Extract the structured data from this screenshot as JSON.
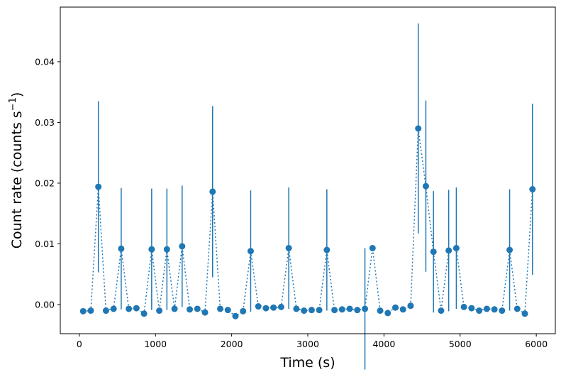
{
  "chart_data": {
    "type": "scatter",
    "xlabel": "Time (s)",
    "ylabel_main": "Count rate (counts s",
    "ylabel_sup": "−1",
    "ylabel_close": ")",
    "xlim": [
      -250,
      6250
    ],
    "ylim": [
      -0.0048,
      0.049
    ],
    "xticks": [
      0,
      1000,
      2000,
      3000,
      4000,
      5000,
      6000
    ],
    "xtick_labels": [
      "0",
      "1000",
      "2000",
      "3000",
      "4000",
      "5000",
      "6000"
    ],
    "yticks": [
      0.0,
      0.01,
      0.02,
      0.03,
      0.04
    ],
    "ytick_labels": [
      "0.00",
      "0.01",
      "0.02",
      "0.03",
      "0.04"
    ],
    "grid": false,
    "color": "#1f77b4",
    "line_style": "dotted",
    "x": [
      50,
      150,
      250,
      350,
      450,
      550,
      650,
      750,
      850,
      950,
      1050,
      1150,
      1250,
      1350,
      1450,
      1550,
      1650,
      1750,
      1850,
      1950,
      2050,
      2150,
      2250,
      2350,
      2450,
      2550,
      2650,
      2750,
      2850,
      2950,
      3050,
      3150,
      3250,
      3350,
      3450,
      3550,
      3650,
      3750,
      3850,
      3950,
      4050,
      4150,
      4250,
      4350,
      4450,
      4550,
      4650,
      4750,
      4850,
      4950,
      5050,
      5150,
      5250,
      5350,
      5450,
      5550,
      5650,
      5750,
      5850,
      5950
    ],
    "y": [
      -0.0011,
      -0.001,
      0.0194,
      -0.001,
      -0.0007,
      0.0092,
      -0.0007,
      -0.0006,
      -0.0015,
      0.0091,
      -0.001,
      0.0091,
      -0.0007,
      0.0096,
      -0.0008,
      -0.0007,
      -0.0013,
      0.0186,
      -0.0007,
      -0.0009,
      -0.0019,
      -0.0011,
      0.0088,
      -0.0003,
      -0.0006,
      -0.0005,
      -0.0004,
      0.0093,
      -0.0007,
      -0.001,
      -0.0009,
      -0.0009,
      0.009,
      -0.0009,
      -0.0008,
      -0.0007,
      -0.0009,
      -0.0007,
      0.0093,
      -0.001,
      -0.0014,
      -0.0005,
      -0.0008,
      -0.0002,
      0.029,
      0.0195,
      0.0087,
      -0.001,
      0.0089,
      0.0093,
      -0.0004,
      -0.0006,
      -0.001,
      -0.0007,
      -0.0008,
      -0.001,
      0.009,
      -0.0007,
      -0.0015,
      0.019
    ],
    "yerr": [
      0,
      0,
      0.0141,
      0,
      0,
      0.01,
      0,
      0,
      0,
      0.01,
      0,
      0.01,
      0,
      0.01,
      0,
      0,
      0,
      0.0141,
      0,
      0,
      0,
      0,
      0.01,
      0,
      0,
      0,
      0,
      0.01,
      0,
      0,
      0,
      0,
      0.01,
      0,
      0,
      0,
      0,
      0.01,
      0,
      0,
      0,
      0,
      0,
      0,
      0.0173,
      0.0141,
      0.01,
      0,
      0.01,
      0.01,
      0,
      0,
      0,
      0,
      0,
      0,
      0.01,
      0,
      0,
      0.0141
    ]
  }
}
